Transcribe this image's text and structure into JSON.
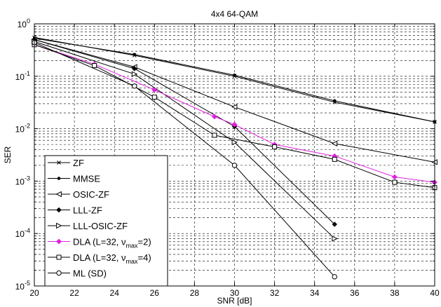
{
  "chart_data": {
    "type": "line",
    "title": "4x4 64-QAM",
    "xlabel": "SNR [dB]",
    "ylabel": "SER",
    "xlim": [
      20,
      40
    ],
    "ylim": [
      1e-05,
      1
    ],
    "yscale": "log",
    "grid": true,
    "legend_position": "bottom-left",
    "xticks": [
      "20",
      "22",
      "24",
      "26",
      "28",
      "30",
      "32",
      "34",
      "36",
      "38",
      "40"
    ],
    "yticks": [
      {
        "base": "10",
        "exp": "0"
      },
      {
        "base": "10",
        "exp": "-1"
      },
      {
        "base": "10",
        "exp": "-2"
      },
      {
        "base": "10",
        "exp": "-3"
      },
      {
        "base": "10",
        "exp": "-4"
      },
      {
        "base": "10",
        "exp": "-5"
      }
    ],
    "series": [
      {
        "name": "ZF",
        "marker": "x",
        "color": "#000000",
        "x": [
          20,
          25,
          30,
          35,
          40
        ],
        "y": [
          0.55,
          0.25,
          0.1,
          0.032,
          0.0135
        ]
      },
      {
        "name": "MMSE",
        "marker": "dot",
        "color": "#000000",
        "x": [
          20,
          25,
          30,
          35,
          40
        ],
        "y": [
          0.53,
          0.26,
          0.105,
          0.034,
          0.0135
        ]
      },
      {
        "name": "OSIC-ZF",
        "marker": "triangle-left",
        "color": "#000000",
        "x": [
          20,
          25,
          30,
          35,
          40
        ],
        "y": [
          0.5,
          0.15,
          0.026,
          0.0052,
          0.0023
        ]
      },
      {
        "name": "LLL-ZF",
        "marker": "diamond",
        "color": "#000000",
        "x": [
          20,
          25,
          30,
          35
        ],
        "y": [
          0.5,
          0.14,
          0.011,
          0.00015
        ]
      },
      {
        "name": "LLL-OSIC-ZF",
        "marker": "triangle-right",
        "color": "#000000",
        "x": [
          20,
          25,
          30,
          35
        ],
        "y": [
          0.46,
          0.11,
          0.0055,
          8e-05
        ]
      },
      {
        "name": "DLA (L=32, ν_max=2)",
        "label_main": "DLA (L=32, ν",
        "label_sub": "max",
        "label_end": "=2)",
        "marker": "star",
        "color": "#e020e0",
        "x": [
          20,
          23,
          26,
          29,
          30,
          32,
          35,
          38,
          40
        ],
        "y": [
          0.4,
          0.17,
          0.055,
          0.017,
          0.012,
          0.005,
          0.003,
          0.0012,
          0.00095
        ]
      },
      {
        "name": "DLA (L=32, ν_max=4)",
        "label_main": "DLA (L=32, ν",
        "label_sub": "max",
        "label_end": "=4)",
        "marker": "square",
        "color": "#000000",
        "x": [
          20,
          23,
          26,
          29,
          32,
          35,
          38,
          40
        ],
        "y": [
          0.4,
          0.16,
          0.04,
          0.0075,
          0.0045,
          0.0026,
          0.00095,
          0.00075
        ]
      },
      {
        "name": "ML (SD)",
        "marker": "circle",
        "color": "#000000",
        "x": [
          20,
          25,
          30,
          35
        ],
        "y": [
          0.44,
          0.065,
          0.002,
          1.5e-05
        ]
      }
    ]
  }
}
